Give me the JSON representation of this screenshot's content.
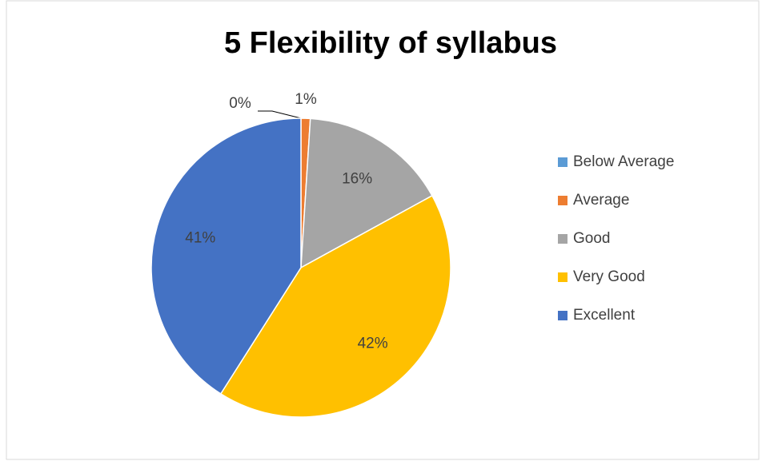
{
  "chart_data": {
    "type": "pie",
    "title": "5 Flexibility of syllabus",
    "categories": [
      "Below Average",
      "Average",
      "Good",
      "Very Good",
      "Excellent"
    ],
    "values": [
      0,
      1,
      16,
      42,
      41
    ],
    "value_labels": [
      "0%",
      "1%",
      "16%",
      "42%",
      "41%"
    ],
    "colors": [
      "#5B9BD5",
      "#ED7D31",
      "#A5A5A5",
      "#FFC000",
      "#4472C4"
    ],
    "legend": "right"
  }
}
